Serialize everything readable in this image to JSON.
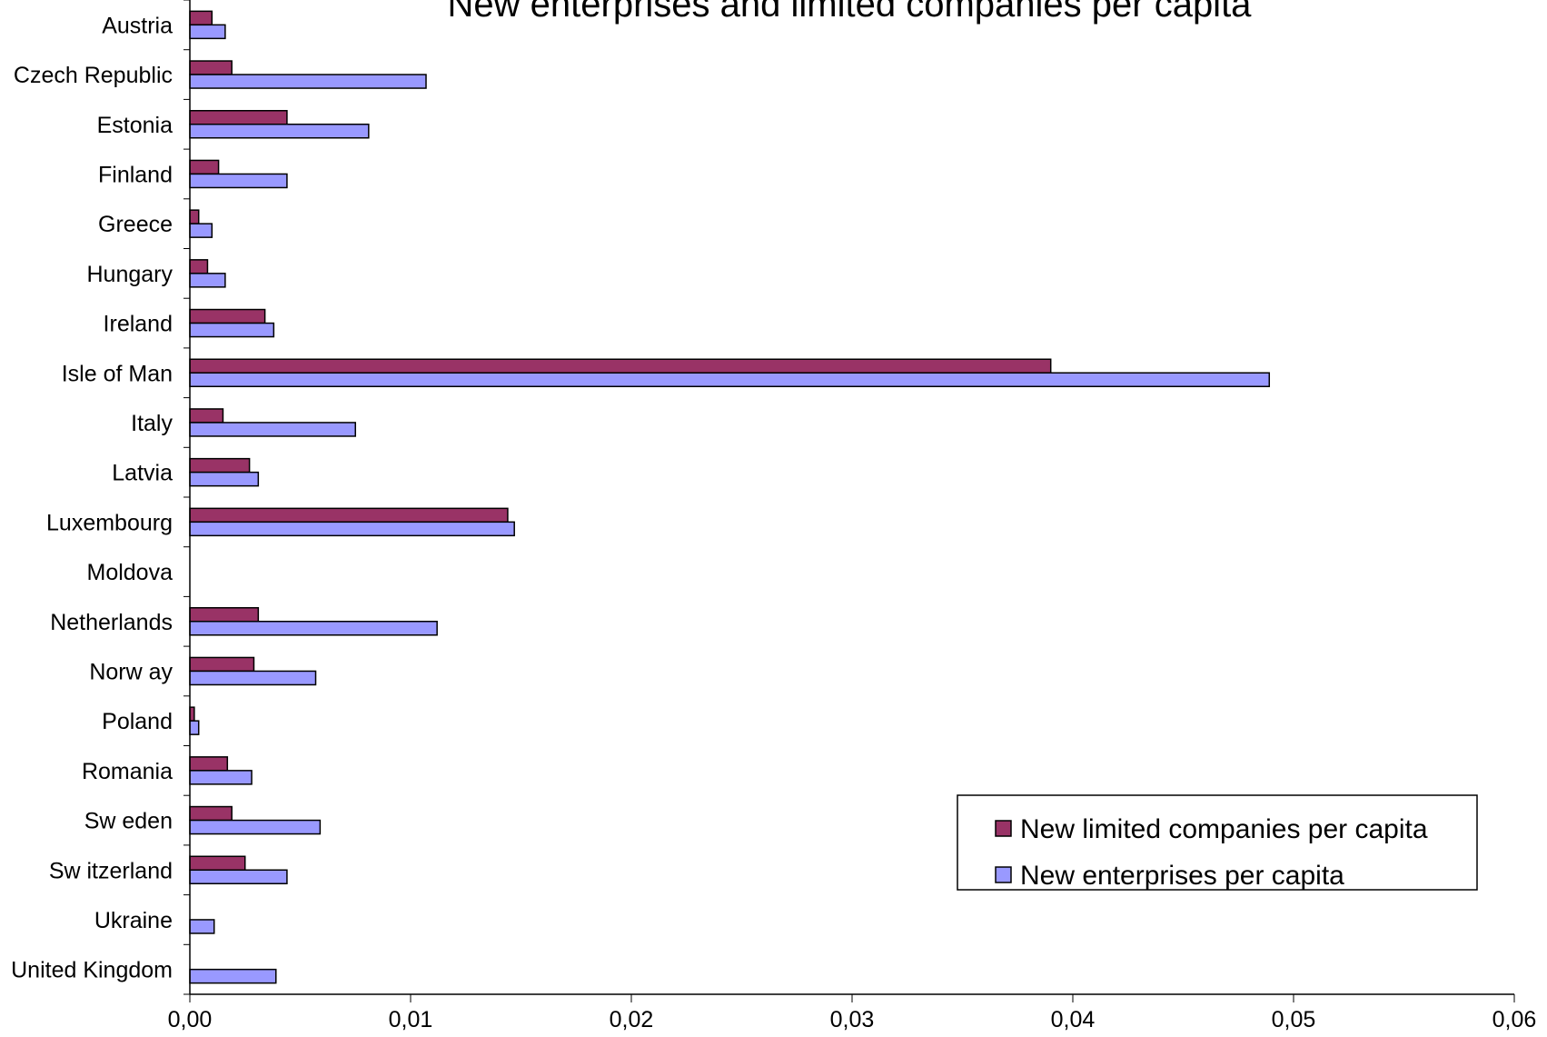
{
  "chart_data": {
    "type": "bar",
    "orientation": "horizontal",
    "title": "New enterprises and limited companies per capita",
    "xlabel": "",
    "ylabel": "",
    "xlim": [
      0,
      0.06
    ],
    "x_ticks": [
      "0,00",
      "0,01",
      "0,02",
      "0,03",
      "0,04",
      "0,05",
      "0,06"
    ],
    "x_tick_values": [
      0,
      0.01,
      0.02,
      0.03,
      0.04,
      0.05,
      0.06
    ],
    "grid": false,
    "legend_position": "bottom-right",
    "categories": [
      "Austria",
      "Czech Republic",
      "Estonia",
      "Finland",
      "Greece",
      "Hungary",
      "Ireland",
      "Isle of Man",
      "Italy",
      "Latvia",
      "Luxembourg",
      "Moldova",
      "Netherlands",
      "Norw ay",
      "Poland",
      "Romania",
      "Sw eden",
      "Sw itzerland",
      "Ukraine",
      "United Kingdom"
    ],
    "series": [
      {
        "name": "New limited companies per capita",
        "color": "#993366",
        "values": [
          0.001,
          0.0019,
          0.0044,
          0.0013,
          0.0004,
          0.0008,
          0.0034,
          0.039,
          0.0015,
          0.0027,
          0.0144,
          0,
          0.0031,
          0.0029,
          0.0002,
          0.0017,
          0.0019,
          0.0025,
          0,
          0
        ]
      },
      {
        "name": "New enterprises per capita",
        "color": "#9999ff",
        "values": [
          0.0016,
          0.0107,
          0.0081,
          0.0044,
          0.001,
          0.0016,
          0.0038,
          0.0489,
          0.0075,
          0.0031,
          0.0147,
          0,
          0.0112,
          0.0057,
          0.0004,
          0.0028,
          0.0059,
          0.0044,
          0.0011,
          0.0039
        ]
      }
    ]
  }
}
